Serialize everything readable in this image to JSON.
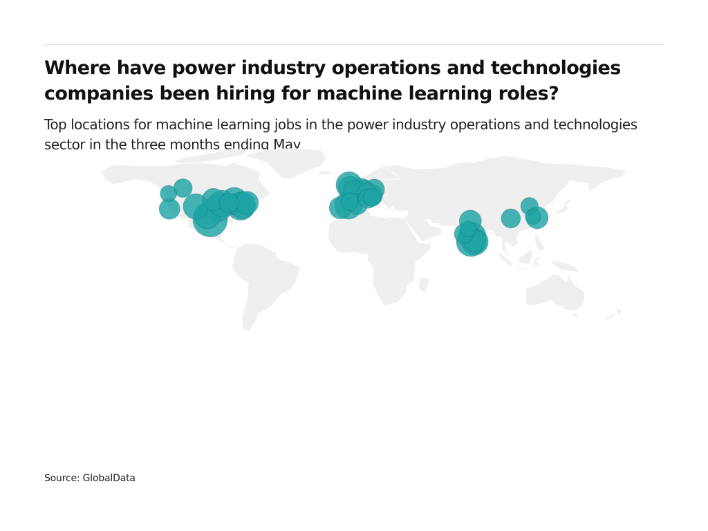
{
  "title": "Where have power industry operations and technologies companies been hiring for machine learning roles?",
  "subtitle": "Top locations for machine learning jobs in the power industry operations and technologies sector in the three months ending May",
  "source": "Source: GlobalData",
  "colors": {
    "land": "#efefef",
    "border": "#ffffff",
    "bubble_fill": "#1fa3a5",
    "bubble_stroke": "#0d5e60"
  },
  "chart_data": {
    "type": "map",
    "map": "world",
    "encoding": "bubble size represents relative number of machine learning job postings by location",
    "locations": [
      {
        "region": "North America",
        "lon": -123.1,
        "lat": 49.3,
        "weight": 0.12
      },
      {
        "region": "North America",
        "lon": -113.5,
        "lat": 53.5,
        "weight": 0.18
      },
      {
        "region": "North America",
        "lon": -122.4,
        "lat": 37.8,
        "weight": 0.25
      },
      {
        "region": "North America",
        "lon": -104.9,
        "lat": 39.7,
        "weight": 0.45
      },
      {
        "region": "North America",
        "lon": -97.3,
        "lat": 32.8,
        "weight": 0.5
      },
      {
        "region": "North America",
        "lon": -95.4,
        "lat": 29.8,
        "weight": 1.0
      },
      {
        "region": "North America",
        "lon": -90.2,
        "lat": 38.6,
        "weight": 0.55
      },
      {
        "region": "North America",
        "lon": -93.3,
        "lat": 45.0,
        "weight": 0.3
      },
      {
        "region": "North America",
        "lon": -87.6,
        "lat": 41.9,
        "weight": 0.5
      },
      {
        "region": "North America",
        "lon": -83.0,
        "lat": 42.3,
        "weight": 0.2
      },
      {
        "region": "North America",
        "lon": -79.4,
        "lat": 43.7,
        "weight": 0.55
      },
      {
        "region": "North America",
        "lon": -75.2,
        "lat": 40.0,
        "weight": 0.6
      },
      {
        "region": "North America",
        "lon": -74.0,
        "lat": 40.7,
        "weight": 0.5
      },
      {
        "region": "North America",
        "lon": -71.1,
        "lat": 42.4,
        "weight": 0.35
      },
      {
        "region": "Europe",
        "lon": -3.2,
        "lat": 55.9,
        "weight": 0.5
      },
      {
        "region": "Europe",
        "lon": -2.6,
        "lat": 53.6,
        "weight": 0.35
      },
      {
        "region": "Europe",
        "lon": -0.1,
        "lat": 51.5,
        "weight": 0.25
      },
      {
        "region": "Europe",
        "lon": 4.9,
        "lat": 52.4,
        "weight": 0.3
      },
      {
        "region": "Europe",
        "lon": 7.0,
        "lat": 51.2,
        "weight": 0.3
      },
      {
        "region": "Europe",
        "lon": 8.7,
        "lat": 50.1,
        "weight": 0.2
      },
      {
        "region": "Europe",
        "lon": 11.6,
        "lat": 48.1,
        "weight": 0.3
      },
      {
        "region": "Europe",
        "lon": 9.2,
        "lat": 45.5,
        "weight": 0.2
      },
      {
        "region": "Europe",
        "lon": 13.4,
        "lat": 52.5,
        "weight": 0.25
      },
      {
        "region": "Europe",
        "lon": 12.0,
        "lat": 46.5,
        "weight": 0.15
      },
      {
        "region": "Europe",
        "lon": -9.1,
        "lat": 38.7,
        "weight": 0.3
      },
      {
        "region": "Europe",
        "lon": -3.7,
        "lat": 40.4,
        "weight": 0.55
      },
      {
        "region": "Europe",
        "lon": -2.9,
        "lat": 43.3,
        "weight": 0.15
      },
      {
        "region": "Europe",
        "lon": 2.2,
        "lat": 41.4,
        "weight": 0.25
      },
      {
        "region": "Asia",
        "lon": 72.9,
        "lat": 19.1,
        "weight": 0.2
      },
      {
        "region": "Asia",
        "lon": 77.2,
        "lat": 28.6,
        "weight": 0.3
      },
      {
        "region": "Asia",
        "lon": 75.9,
        "lat": 22.7,
        "weight": 0.1
      },
      {
        "region": "Asia",
        "lon": 77.6,
        "lat": 12.97,
        "weight": 0.65
      },
      {
        "region": "Asia",
        "lon": 78.5,
        "lat": 17.4,
        "weight": 0.55
      },
      {
        "region": "Asia",
        "lon": 80.3,
        "lat": 13.1,
        "weight": 0.5
      },
      {
        "region": "Asia",
        "lon": 80.3,
        "lat": 13.4,
        "weight": 0.3
      },
      {
        "region": "Asia",
        "lon": 104.1,
        "lat": 30.7,
        "weight": 0.2
      },
      {
        "region": "Asia",
        "lon": 116.4,
        "lat": 39.9,
        "weight": 0.15
      },
      {
        "region": "Asia",
        "lon": 118.8,
        "lat": 32.1,
        "weight": 0.1
      },
      {
        "region": "Asia",
        "lon": 121.5,
        "lat": 31.2,
        "weight": 0.3
      }
    ]
  }
}
